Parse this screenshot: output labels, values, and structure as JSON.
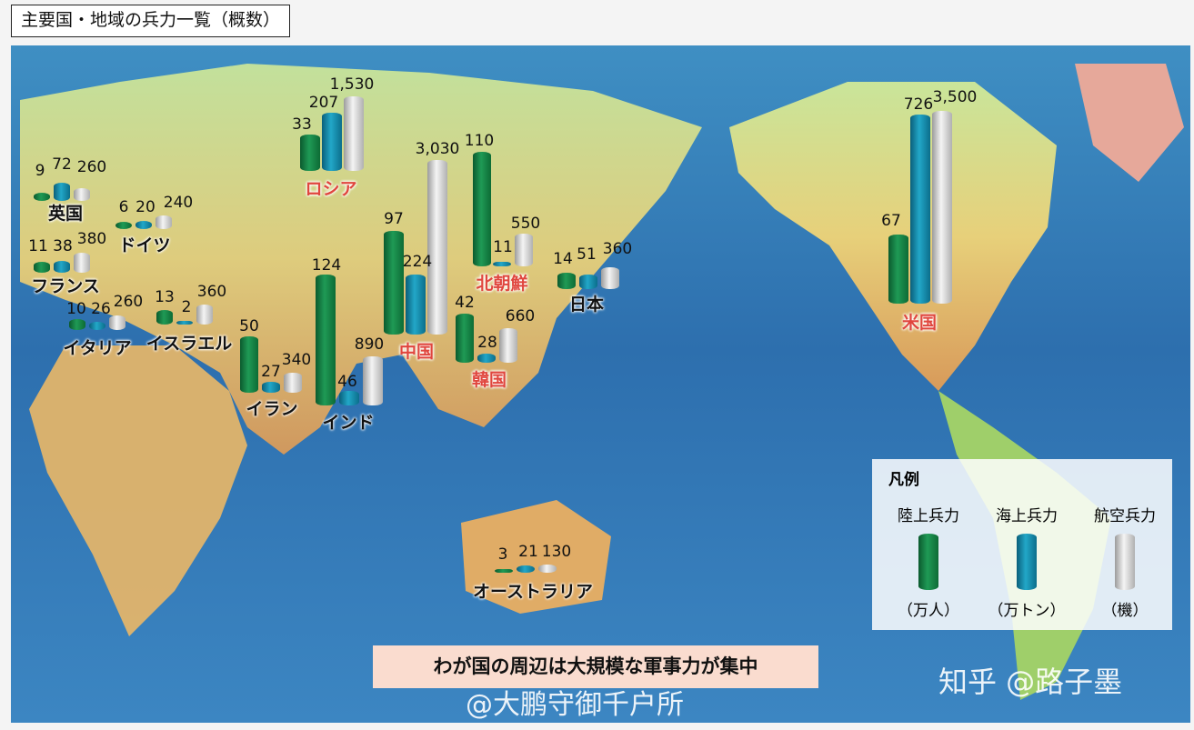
{
  "title": "主要国・地域の兵力一覧（概数）",
  "legend": {
    "title": "凡例",
    "land_label": "陸上兵力",
    "sea_label": "海上兵力",
    "air_label": "航空兵力",
    "land_unit": "（万人）",
    "sea_unit": "（万トン）",
    "air_unit": "（機）",
    "colors": {
      "land": "#1a8a4a",
      "sea": "#1e9bbd",
      "air": "#d8d8d8"
    }
  },
  "countries": {
    "uk": {
      "name": "英国",
      "highlight": false,
      "land": "9",
      "sea": "72",
      "air": "260"
    },
    "germany": {
      "name": "ドイツ",
      "highlight": false,
      "land": "6",
      "sea": "20",
      "air": "240"
    },
    "france": {
      "name": "フランス",
      "highlight": false,
      "land": "11",
      "sea": "38",
      "air": "380"
    },
    "italy": {
      "name": "イタリア",
      "highlight": false,
      "land": "10",
      "sea": "26",
      "air": "260"
    },
    "israel": {
      "name": "イスラエル",
      "highlight": false,
      "land": "13",
      "sea": "2",
      "air": "360"
    },
    "iran": {
      "name": "イラン",
      "highlight": false,
      "land": "50",
      "sea": "27",
      "air": "340"
    },
    "india": {
      "name": "インド",
      "highlight": false,
      "land": "124",
      "sea": "46",
      "air": "890"
    },
    "russia": {
      "name": "ロシア",
      "highlight": true,
      "land": "33",
      "sea": "207",
      "air": "1,530"
    },
    "china": {
      "name": "中国",
      "highlight": true,
      "land": "97",
      "sea": "224",
      "air": "3,030"
    },
    "nkorea": {
      "name": "北朝鮮",
      "highlight": true,
      "land": "110",
      "sea": "11",
      "air": "550"
    },
    "skorea": {
      "name": "韓国",
      "highlight": true,
      "land": "42",
      "sea": "28",
      "air": "660"
    },
    "japan": {
      "name": "日本",
      "highlight": false,
      "land": "14",
      "sea": "51",
      "air": "360"
    },
    "usa": {
      "name": "米国",
      "highlight": true,
      "land": "67",
      "sea": "726",
      "air": "3,500"
    },
    "australia": {
      "name": "オーストラリア",
      "highlight": false,
      "land": "3",
      "sea": "21",
      "air": "130"
    }
  },
  "banner": "わが国の周辺は大規模な軍事力が集中",
  "watermarks": {
    "zhihu": "知乎 @路子墨",
    "weibo": "@大鹏守御千户所"
  }
}
